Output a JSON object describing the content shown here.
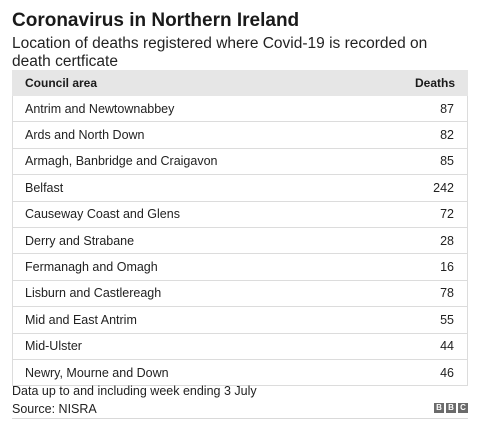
{
  "header": {
    "title": "Coronavirus in Northern Ireland",
    "subtitle": "Location of deaths registered where Covid-19 is recorded on death certficate"
  },
  "table": {
    "columns": [
      "Council area",
      "Deaths"
    ],
    "rows": [
      {
        "area": "Antrim and Newtownabbey",
        "deaths": "87"
      },
      {
        "area": "Ards and North Down",
        "deaths": "82"
      },
      {
        "area": "Armagh, Banbridge and Craigavon",
        "deaths": "85"
      },
      {
        "area": "Belfast",
        "deaths": "242"
      },
      {
        "area": "Causeway Coast and Glens",
        "deaths": "72"
      },
      {
        "area": "Derry and Strabane",
        "deaths": "28"
      },
      {
        "area": "Fermanagh and Omagh",
        "deaths": "16"
      },
      {
        "area": "Lisburn and Castlereagh",
        "deaths": "78"
      },
      {
        "area": "Mid and East Antrim",
        "deaths": "55"
      },
      {
        "area": "Mid-Ulster",
        "deaths": "44"
      },
      {
        "area": "Newry, Mourne and Down",
        "deaths": "46"
      }
    ]
  },
  "footer": {
    "note": "Data up to and including week ending 3 July",
    "source": "Source: NISRA",
    "logo_letters": [
      "B",
      "B",
      "C"
    ]
  },
  "colors": {
    "header_bg": "#e6e6e6",
    "row_border": "#dcdcdc",
    "logo_bg": "#6b6b6b"
  }
}
